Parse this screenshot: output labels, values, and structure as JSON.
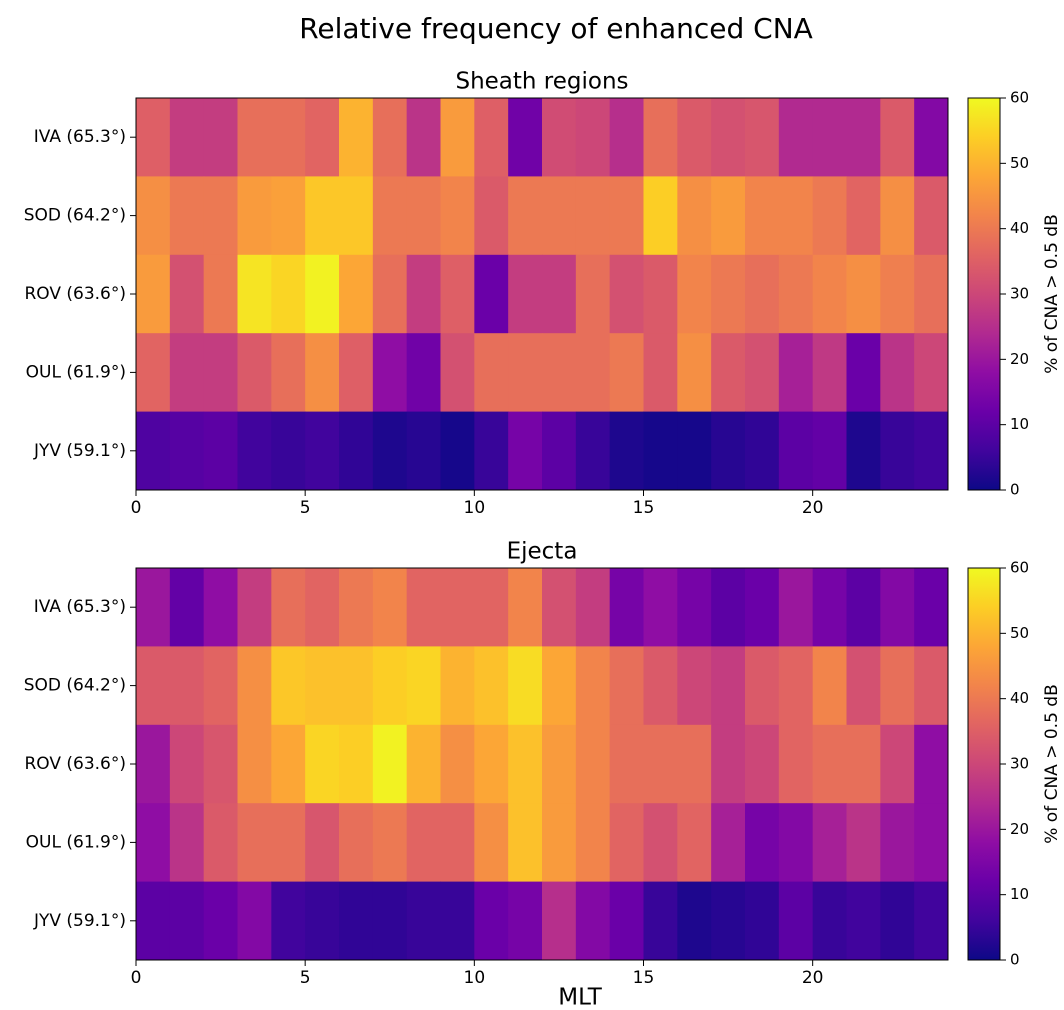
{
  "title": "Relative frequency of enhanced CNA",
  "xlabel": "MLT",
  "chart_data": [
    {
      "type": "heatmap",
      "title": "Sheath regions",
      "colormap": "plasma",
      "categories": [
        "IVA (65.3°)",
        "SOD (64.2°)",
        "ROV (63.6°)",
        "OUL (61.9°)",
        "JYV (59.1°)"
      ],
      "xbins": [
        0,
        1,
        2,
        3,
        4,
        5,
        6,
        7,
        8,
        9,
        10,
        11,
        12,
        13,
        14,
        15,
        16,
        17,
        18,
        19,
        20,
        21,
        22,
        23,
        24
      ],
      "values": [
        [
          35,
          28,
          28,
          38,
          38,
          36,
          50,
          38,
          26,
          46,
          35,
          13,
          31,
          30,
          25,
          38,
          34,
          32,
          33,
          24,
          24,
          24,
          34,
          16
        ],
        [
          44,
          40,
          40,
          46,
          47,
          53,
          53,
          40,
          40,
          42,
          34,
          40,
          40,
          40,
          40,
          54,
          44,
          46,
          42,
          42,
          40,
          36,
          44,
          34
        ],
        [
          46,
          32,
          40,
          57,
          55,
          59,
          48,
          38,
          28,
          35,
          12,
          28,
          28,
          38,
          32,
          34,
          42,
          40,
          38,
          40,
          42,
          44,
          41,
          38
        ],
        [
          36,
          28,
          28,
          34,
          38,
          44,
          35,
          18,
          13,
          32,
          38,
          38,
          38,
          38,
          40,
          34,
          44,
          34,
          32,
          22,
          27,
          12,
          26,
          30
        ],
        [
          8,
          9,
          10,
          6,
          5,
          6,
          4,
          2,
          3,
          1,
          5,
          14,
          10,
          5,
          2,
          1,
          1,
          3,
          4,
          10,
          11,
          2,
          5,
          6
        ]
      ],
      "xlim": [
        0,
        24
      ],
      "xticks": [
        0,
        5,
        10,
        15,
        20
      ],
      "clim": [
        0,
        60
      ],
      "cticks": [
        0,
        10,
        20,
        30,
        40,
        50,
        60
      ],
      "clabel": "% of CNA > 0.5 dB"
    },
    {
      "type": "heatmap",
      "title": "Ejecta",
      "colormap": "plasma",
      "categories": [
        "IVA (65.3°)",
        "SOD (64.2°)",
        "ROV (63.6°)",
        "OUL (61.9°)",
        "JYV (59.1°)"
      ],
      "xbins": [
        0,
        1,
        2,
        3,
        4,
        5,
        6,
        7,
        8,
        9,
        10,
        11,
        12,
        13,
        14,
        15,
        16,
        17,
        18,
        19,
        20,
        21,
        22,
        23,
        24
      ],
      "values": [
        [
          20,
          11,
          18,
          28,
          38,
          36,
          40,
          42,
          36,
          36,
          36,
          42,
          32,
          28,
          14,
          18,
          14,
          10,
          12,
          20,
          14,
          10,
          16,
          12
        ],
        [
          34,
          34,
          36,
          44,
          53,
          52,
          52,
          54,
          55,
          50,
          52,
          56,
          48,
          42,
          38,
          34,
          30,
          28,
          34,
          36,
          42,
          32,
          38,
          34
        ],
        [
          20,
          30,
          33,
          44,
          48,
          55,
          54,
          59,
          50,
          44,
          48,
          52,
          46,
          42,
          38,
          38,
          38,
          28,
          30,
          36,
          38,
          38,
          30,
          18
        ],
        [
          18,
          26,
          34,
          38,
          38,
          33,
          38,
          40,
          36,
          36,
          44,
          52,
          46,
          42,
          36,
          32,
          36,
          22,
          14,
          16,
          22,
          26,
          20,
          18
        ],
        [
          10,
          10,
          12,
          16,
          6,
          5,
          4,
          4,
          5,
          5,
          12,
          14,
          25,
          16,
          12,
          5,
          2,
          3,
          4,
          10,
          5,
          6,
          4,
          6
        ]
      ],
      "xlim": [
        0,
        24
      ],
      "xticks": [
        0,
        5,
        10,
        15,
        20
      ],
      "clim": [
        0,
        60
      ],
      "cticks": [
        0,
        10,
        20,
        30,
        40,
        50,
        60
      ],
      "clabel": "% of CNA > 0.5 dB"
    }
  ]
}
